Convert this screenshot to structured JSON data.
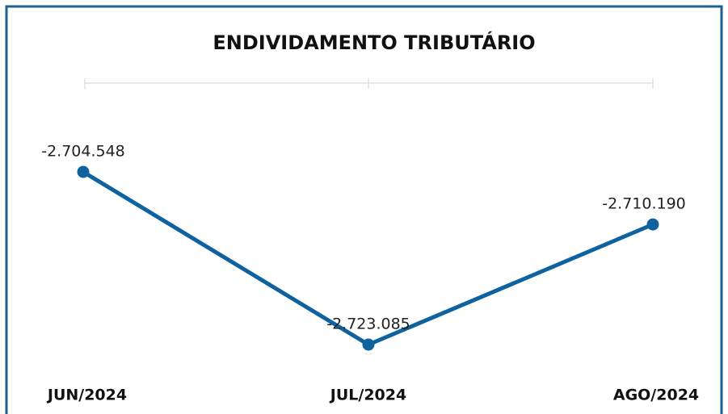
{
  "chart_data": {
    "type": "line",
    "title": "ENDIVIDAMENTO TRIBUTÁRIO",
    "categories": [
      "JUN/2024",
      "JUL/2024",
      "AGO/2024"
    ],
    "values": [
      -2704548,
      -2723085,
      -2710190
    ],
    "value_labels": [
      "-2.704.548",
      "-2.723.085",
      "-2.710.190"
    ],
    "color": "#0e62a0"
  }
}
